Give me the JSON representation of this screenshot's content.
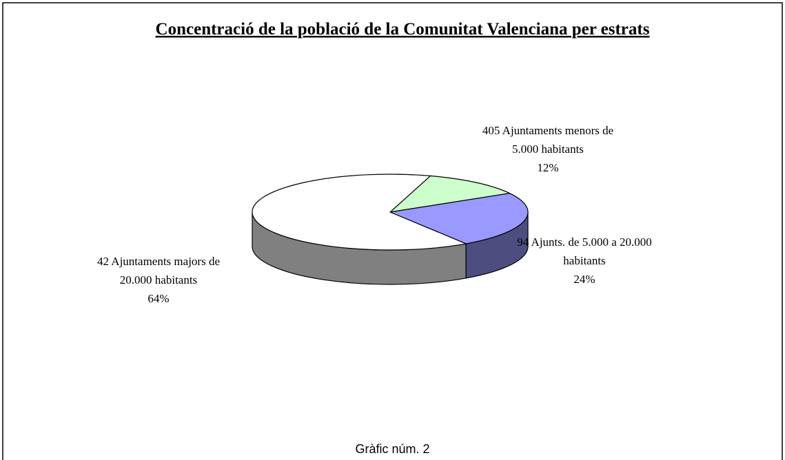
{
  "chart_data": {
    "type": "pie3d",
    "title": "Concentració de la població de la Comunitat Valenciana per estrats",
    "categories": [
      "405 Ajuntaments menors de 5.000 habitants",
      "94 Ajunts. de 5.000 a 20.000 habitants",
      "42 Ajuntaments majors de 20.000 habitants"
    ],
    "values": [
      12,
      24,
      64
    ],
    "value_labels": [
      "12%",
      "24%",
      "64%"
    ],
    "colors": [
      "#ccffcc",
      "#9999ff",
      "#ffffff"
    ],
    "caption": "Gràfic núm. 2"
  }
}
